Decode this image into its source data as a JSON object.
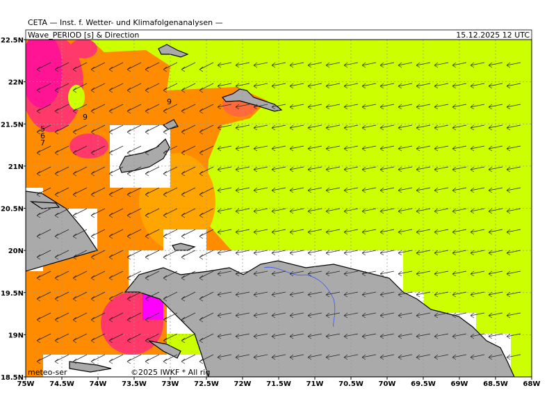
{
  "header": {
    "source": "CETA — Inst. f. Wetter- und Klimafolgenanalysen —",
    "title": "Wave_PERIOD [s] & Direction",
    "timestamp": "15.12.2025 12 UTC"
  },
  "axes": {
    "x_labels": [
      "75W",
      "74.5W",
      "74W",
      "73.5W",
      "73W",
      "72.5W",
      "72W",
      "71.5W",
      "71W",
      "70.5W",
      "70W",
      "69.5W",
      "69W",
      "68.5W",
      "68W"
    ],
    "y_labels": [
      "22.5N",
      "22N",
      "21.5N",
      "21N",
      "20.5N",
      "20N",
      "19.5N",
      "19N",
      "18.5N"
    ]
  },
  "contour_labels": [
    "9",
    "9",
    "5",
    "6",
    "7"
  ],
  "footer": {
    "site": "meteo-ser",
    "copyright": "©2025 IWKF * All rig"
  }
}
